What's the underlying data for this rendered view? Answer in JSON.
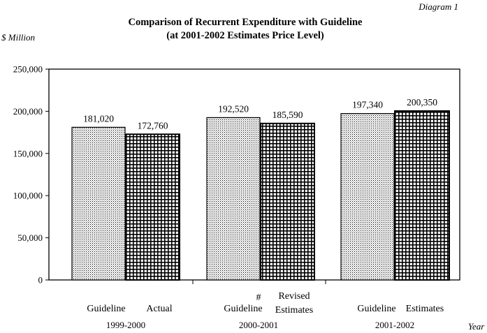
{
  "page": {
    "diagram_label": "Diagram 1"
  },
  "chart_data": {
    "type": "bar",
    "title": "Comparison of Recurrent Expenditure with Guideline",
    "subtitle": "(at 2001-2002 Estimates Price Level)",
    "ylabel": "$ Million",
    "xlabel": "Year",
    "ylim": [
      0,
      250000
    ],
    "yticks": [
      0,
      50000,
      100000,
      150000,
      200000,
      250000
    ],
    "ytick_labels": [
      "0",
      "50,000",
      "100,000",
      "150,000",
      "200,000",
      "250,000"
    ],
    "grid": false,
    "groups": [
      {
        "year": "1999-2000",
        "bars": [
          {
            "label": "Guideline",
            "note": "",
            "value": 181020,
            "value_label": "181,020",
            "pattern": "dots"
          },
          {
            "label": "Actual",
            "note": "",
            "value": 172760,
            "value_label": "172,760",
            "pattern": "grid"
          }
        ]
      },
      {
        "year": "2000-2001",
        "bars": [
          {
            "label": "Guideline",
            "note": "#",
            "value": 192520,
            "value_label": "192,520",
            "pattern": "dots"
          },
          {
            "label": "Revised\nEstimates",
            "note": "",
            "value": 185590,
            "value_label": "185,590",
            "pattern": "grid"
          }
        ]
      },
      {
        "year": "2001-2002",
        "bars": [
          {
            "label": "Guideline",
            "note": "",
            "value": 197340,
            "value_label": "197,340",
            "pattern": "dots"
          },
          {
            "label": "Estimates",
            "note": "",
            "value": 200350,
            "value_label": "200,350",
            "pattern": "grid"
          }
        ]
      }
    ]
  }
}
